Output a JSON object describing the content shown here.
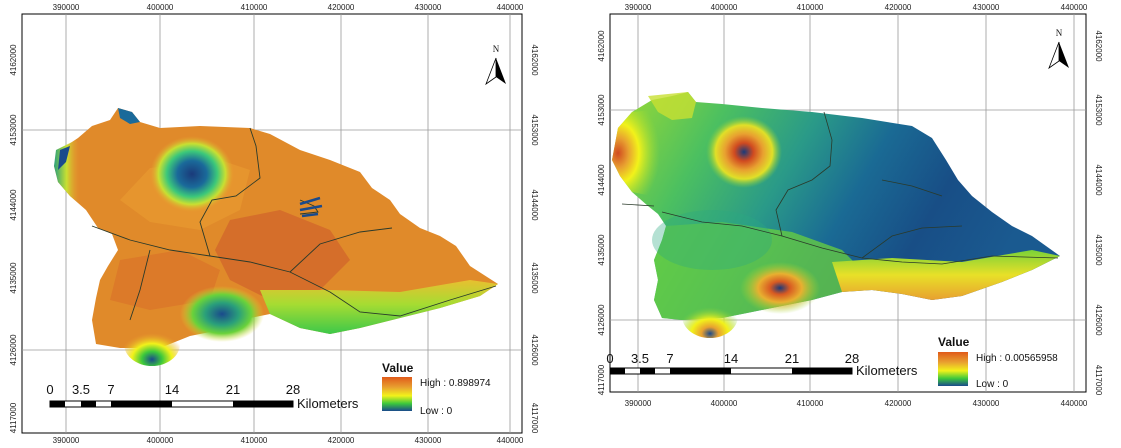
{
  "maps": [
    {
      "x_ticks": [
        "390000",
        "400000",
        "410000",
        "420000",
        "430000",
        "440000"
      ],
      "y_ticks": [
        "4162000",
        "4153000",
        "4144000",
        "4135000",
        "4126000",
        "4117000"
      ],
      "north_label": "N",
      "legend": {
        "title": "Value",
        "high": "High : 0.898974",
        "low": "Low : 0"
      },
      "scale_bar": {
        "labels": [
          "0",
          "3.5",
          "7",
          "14",
          "21",
          "28"
        ],
        "unit": "Kilometers"
      }
    },
    {
      "x_ticks": [
        "390000",
        "400000",
        "410000",
        "420000",
        "430000",
        "440000"
      ],
      "y_ticks": [
        "4162000",
        "4153000",
        "4144000",
        "4135000",
        "4126000",
        "4117000"
      ],
      "north_label": "N",
      "legend": {
        "title": "Value",
        "high": "High : 0.00565958",
        "low": "Low : 0"
      },
      "scale_bar": {
        "labels": [
          "0",
          "3.5",
          "7",
          "14",
          "21",
          "28"
        ],
        "unit": "Kilometers"
      }
    }
  ],
  "colors": {
    "ramp_high": "#e05a1a",
    "ramp_mid_orange": "#e8a030",
    "ramp_yellow": "#f2f21a",
    "ramp_green": "#3cc83c",
    "ramp_low": "#1a4a8c",
    "river": "#2a3a2a"
  }
}
